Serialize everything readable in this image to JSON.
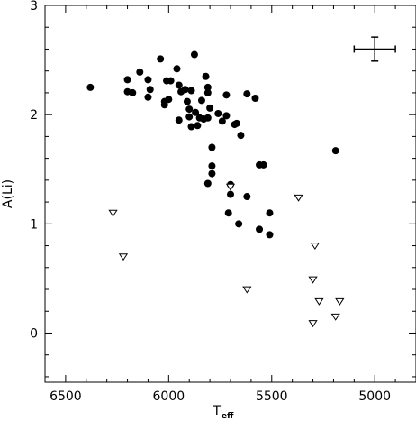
{
  "chart_data": {
    "type": "scatter",
    "xlabel": "T",
    "xlabel_sub": "eff",
    "ylabel": "A(Li)",
    "xlim": [
      6600,
      4800
    ],
    "ylim": [
      -0.45,
      3.0
    ],
    "x_ticks": [
      6500,
      6000,
      5500,
      5000
    ],
    "x_tick_labels": [
      "6500",
      "6000",
      "5500",
      "5000"
    ],
    "y_ticks": [
      0,
      1,
      2,
      3
    ],
    "y_tick_labels": [
      "0",
      "1",
      "2",
      "3"
    ],
    "grid": false,
    "legend": "none",
    "series": [
      {
        "marker": "filled-circle",
        "color": "#000000",
        "points": [
          [
            6380,
            2.25
          ],
          [
            6200,
            2.32
          ],
          [
            6200,
            2.21
          ],
          [
            6175,
            2.2
          ],
          [
            6140,
            2.39
          ],
          [
            6100,
            2.32
          ],
          [
            6100,
            2.16
          ],
          [
            6090,
            2.23
          ],
          [
            6040,
            2.51
          ],
          [
            6020,
            2.12
          ],
          [
            6020,
            2.09
          ],
          [
            6010,
            2.31
          ],
          [
            6000,
            2.14
          ],
          [
            5990,
            2.31
          ],
          [
            5960,
            2.42
          ],
          [
            5950,
            2.27
          ],
          [
            5950,
            1.95
          ],
          [
            5940,
            2.21
          ],
          [
            5920,
            2.23
          ],
          [
            5910,
            2.12
          ],
          [
            5900,
            2.05
          ],
          [
            5900,
            1.98
          ],
          [
            5890,
            2.22
          ],
          [
            5890,
            1.89
          ],
          [
            5875,
            2.55
          ],
          [
            5870,
            2.02
          ],
          [
            5860,
            1.9
          ],
          [
            5850,
            1.97
          ],
          [
            5840,
            2.13
          ],
          [
            5830,
            1.96
          ],
          [
            5820,
            2.35
          ],
          [
            5810,
            2.25
          ],
          [
            5810,
            2.2
          ],
          [
            5810,
            1.97
          ],
          [
            5810,
            1.37
          ],
          [
            5800,
            2.06
          ],
          [
            5790,
            1.7
          ],
          [
            5790,
            1.53
          ],
          [
            5790,
            1.46
          ],
          [
            5760,
            2.01
          ],
          [
            5740,
            1.94
          ],
          [
            5720,
            2.18
          ],
          [
            5720,
            1.99
          ],
          [
            5710,
            1.1
          ],
          [
            5700,
            1.27
          ],
          [
            5700,
            1.36
          ],
          [
            5680,
            1.91
          ],
          [
            5670,
            1.92
          ],
          [
            5660,
            1.0
          ],
          [
            5650,
            1.81
          ],
          [
            5620,
            2.19
          ],
          [
            5620,
            1.25
          ],
          [
            5580,
            2.15
          ],
          [
            5560,
            0.95
          ],
          [
            5560,
            1.54
          ],
          [
            5540,
            1.54
          ],
          [
            5510,
            0.9
          ],
          [
            5510,
            1.1
          ],
          [
            5190,
            1.67
          ]
        ]
      },
      {
        "marker": "open-triangle-down",
        "color": "#000000",
        "points": [
          [
            6270,
            1.1
          ],
          [
            6220,
            0.7
          ],
          [
            5700,
            1.34
          ],
          [
            5620,
            0.4
          ],
          [
            5370,
            1.24
          ],
          [
            5290,
            0.8
          ],
          [
            5300,
            0.49
          ],
          [
            5270,
            0.29
          ],
          [
            5170,
            0.29
          ],
          [
            5190,
            0.15
          ],
          [
            5300,
            0.09
          ]
        ]
      }
    ],
    "error_bar": {
      "x": 5000,
      "y": 2.6,
      "x_err": 100,
      "y_err": 0.11
    }
  }
}
